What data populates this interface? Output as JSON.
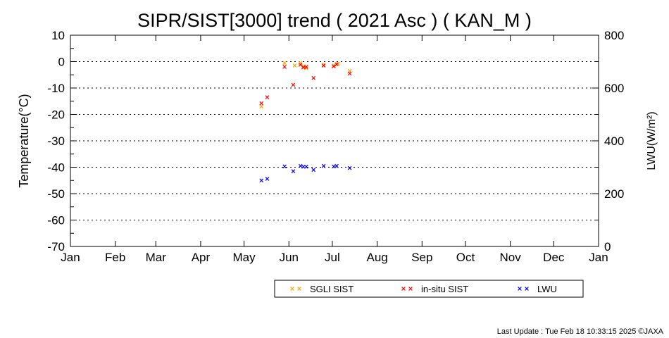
{
  "chart_data": {
    "type": "scatter",
    "title": "SIPR/SIST[3000] trend ( 2021 Asc ) ( KAN_M )",
    "ylabel_left": "Temperature(°C)",
    "ylabel_right": "LWU(W/m²)",
    "x_tick_labels": [
      "Jan",
      "Feb",
      "Mar",
      "Apr",
      "May",
      "Jun",
      "Jul",
      "Aug",
      "Sep",
      "Oct",
      "Nov",
      "Dec",
      "Jan"
    ],
    "y_left_ticks": [
      "10",
      "0",
      "-10",
      "-20",
      "-30",
      "-40",
      "-50",
      "-60",
      "-70"
    ],
    "y_right_ticks": [
      "800",
      "600",
      "400",
      "200",
      "0"
    ],
    "ylim_left": [
      -70,
      10
    ],
    "ylim_right": [
      0,
      800
    ],
    "grid": "horizontal dotted",
    "legend_position": "bottom",
    "series": [
      {
        "name": "SGLI SIST",
        "color": "#FFA500",
        "axis": "left",
        "points": [
          [
            "2021-05-13",
            -17.0
          ],
          [
            "2021-05-29",
            -0.5
          ],
          [
            "2021-06-05",
            -1.5
          ],
          [
            "2021-06-09",
            -0.5
          ],
          [
            "2021-06-11",
            -1.8
          ],
          [
            "2021-06-13",
            -2.5
          ],
          [
            "2021-06-25",
            -1.2
          ],
          [
            "2021-07-02",
            -1.5
          ],
          [
            "2021-07-05",
            -0.8
          ],
          [
            "2021-07-13",
            -3.5
          ]
        ]
      },
      {
        "name": "in-situ SIST",
        "color": "#FF0000",
        "axis": "left",
        "points": [
          [
            "2021-05-13",
            -15.8
          ],
          [
            "2021-05-17",
            -13.5
          ],
          [
            "2021-05-29",
            -2.0
          ],
          [
            "2021-06-04",
            -8.8
          ],
          [
            "2021-06-09",
            -1.2
          ],
          [
            "2021-06-11",
            -2.2
          ],
          [
            "2021-06-13",
            -2.0
          ],
          [
            "2021-06-18",
            -6.2
          ],
          [
            "2021-06-25",
            -1.5
          ],
          [
            "2021-07-02",
            -1.8
          ],
          [
            "2021-07-04",
            -1.0
          ],
          [
            "2021-07-13",
            -4.5
          ]
        ]
      },
      {
        "name": "LWU",
        "color": "#0000FF",
        "axis": "right",
        "points": [
          [
            "2021-05-13",
            250
          ],
          [
            "2021-05-17",
            256
          ],
          [
            "2021-05-29",
            303
          ],
          [
            "2021-06-04",
            285
          ],
          [
            "2021-06-09",
            305
          ],
          [
            "2021-06-11",
            302
          ],
          [
            "2021-06-13",
            302
          ],
          [
            "2021-06-18",
            290
          ],
          [
            "2021-06-25",
            305
          ],
          [
            "2021-07-02",
            303
          ],
          [
            "2021-07-04",
            305
          ],
          [
            "2021-07-13",
            297
          ]
        ]
      }
    ]
  },
  "footer": "Last Update : Tue Feb 18 10:33:15 2025  ©JAXA"
}
